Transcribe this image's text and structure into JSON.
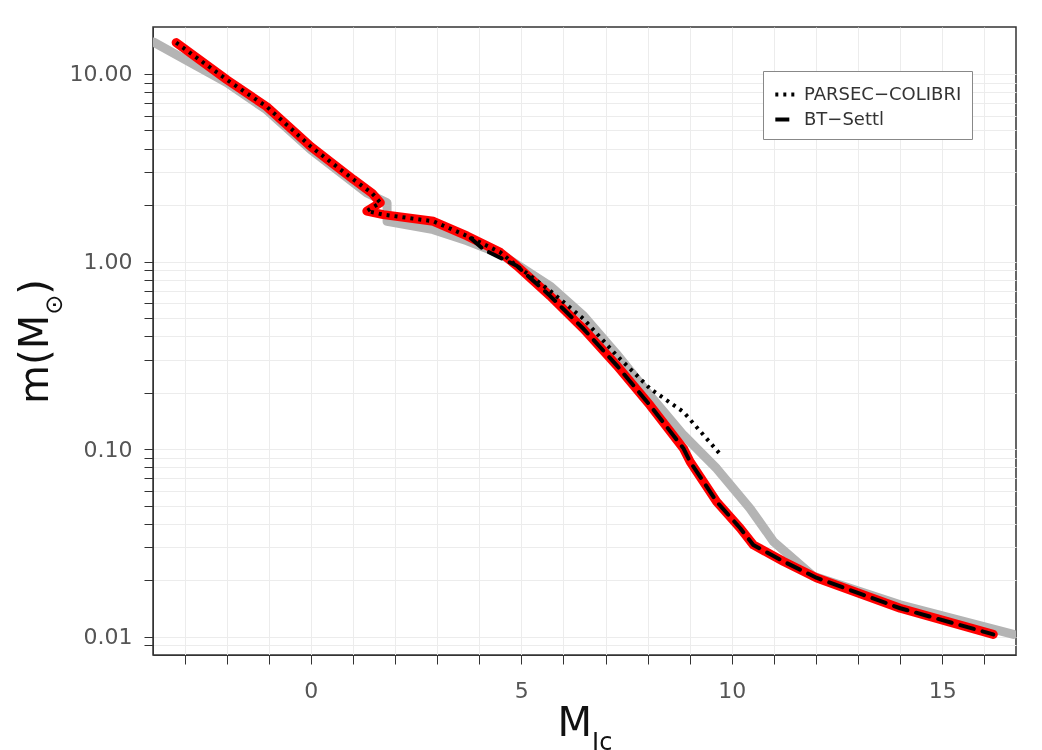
{
  "chart_data": {
    "type": "line",
    "xlabel": "M$_{Ic}$",
    "ylabel": "m(M$_{⊙}$)",
    "log": "y",
    "grid": true,
    "legend": "top right",
    "xlim": [
      -3.75,
      16.75
    ],
    "ylim": [
      0.008,
      17.8
    ],
    "xticks": [
      {
        "value": -3,
        "label": null
      },
      {
        "value": -2,
        "label": null
      },
      {
        "value": -1,
        "label": null
      },
      0,
      {
        "value": 1,
        "label": null
      },
      {
        "value": 2,
        "label": null
      },
      {
        "value": 3,
        "label": null
      },
      {
        "value": 4,
        "label": null
      },
      5,
      {
        "value": 6,
        "label": null
      },
      {
        "value": 7,
        "label": null
      },
      {
        "value": 8,
        "label": null
      },
      {
        "value": 9,
        "label": null
      },
      10,
      {
        "value": 11,
        "label": null
      },
      {
        "value": 12,
        "label": null
      },
      {
        "value": 13,
        "label": null
      },
      {
        "value": 14,
        "label": null
      },
      15,
      {
        "value": 16,
        "label": null
      }
    ],
    "yticks": [
      {
        "value": 0.009,
        "label": null
      },
      {
        "value": 0.01,
        "label": "0.01"
      },
      {
        "value": 0.02,
        "label": null
      },
      {
        "value": 0.03,
        "label": null
      },
      {
        "value": 0.04,
        "label": null
      },
      {
        "value": 0.05,
        "label": null
      },
      {
        "value": 0.06,
        "label": null
      },
      {
        "value": 0.07,
        "label": null
      },
      {
        "value": 0.08,
        "label": null
      },
      {
        "value": 0.09,
        "label": null
      },
      {
        "value": 0.1,
        "label": "0.10"
      },
      {
        "value": 0.2,
        "label": null
      },
      {
        "value": 0.3,
        "label": null
      },
      {
        "value": 0.4,
        "label": null
      },
      {
        "value": 0.5,
        "label": null
      },
      {
        "value": 0.6,
        "label": null
      },
      {
        "value": 0.7,
        "label": null
      },
      {
        "value": 0.8,
        "label": null
      },
      {
        "value": 0.9,
        "label": null
      },
      {
        "value": 1,
        "label": "1.00"
      },
      {
        "value": 2,
        "label": null
      },
      {
        "value": 3,
        "label": null
      },
      {
        "value": 4,
        "label": null
      },
      {
        "value": 5,
        "label": null
      },
      {
        "value": 6,
        "label": null
      },
      {
        "value": 7,
        "label": null
      },
      {
        "value": 8,
        "label": null
      },
      {
        "value": 9,
        "label": null
      },
      {
        "value": 10,
        "label": "10.00"
      }
    ],
    "series": [
      {
        "color": "#b4b4b4",
        "line_style": "solid",
        "x": [
          -3.74,
          -2.0,
          -1.05,
          0,
          1.0,
          1.33,
          1.81,
          1.81,
          2.91,
          3.71,
          4.5,
          5.68,
          6.48,
          7.27,
          8.06,
          8.85,
          9.64,
          10.43,
          10.99,
          11.94,
          14.0,
          16.69
        ],
        "values": [
          14.8,
          9.0,
          6.44,
          3.95,
          2.65,
          2.32,
          2.06,
          1.64,
          1.48,
          1.29,
          1.1,
          0.742,
          0.514,
          0.32,
          0.193,
          0.119,
          0.0789,
          0.0484,
          0.0322,
          0.021,
          0.0148,
          0.0103
        ]
      },
      {
        "color": "#ff0000",
        "line_style": "solid",
        "x": [
          -3.2,
          -1.99,
          -1.05,
          0,
          1.01,
          1.45,
          1.65,
          1.33,
          1.72,
          2.91,
          3.71,
          4.5,
          4.89,
          5.68,
          6.48,
          7.27,
          8.06,
          8.85,
          9.01,
          9.64,
          10.2,
          10.51,
          11.23,
          12.02,
          14.0,
          16.21
        ],
        "values": [
          14.7,
          9.3,
          6.7,
          4.1,
          2.74,
          2.32,
          2.06,
          1.86,
          1.78,
          1.64,
          1.37,
          1.12,
          0.95,
          0.657,
          0.437,
          0.279,
          0.171,
          0.101,
          0.0857,
          0.0525,
          0.0379,
          0.0309,
          0.0252,
          0.0206,
          0.0142,
          0.0103
        ]
      },
      {
        "name": "PARSEC−COLIBRI",
        "color": "#000000",
        "line_style": "dotted",
        "x": [
          -3.2,
          -1.99,
          -1.05,
          0,
          1.01,
          1.45,
          1.65,
          1.33,
          1.72,
          2.91,
          3.71,
          4.5,
          4.89,
          5.68,
          6.48,
          7.27,
          8.06,
          8.85,
          9.76
        ],
        "values": [
          14.7,
          9.3,
          6.7,
          4.1,
          2.74,
          2.32,
          2.06,
          1.86,
          1.78,
          1.64,
          1.37,
          1.12,
          0.95,
          0.7,
          0.494,
          0.315,
          0.21,
          0.158,
          0.092
        ]
      },
      {
        "name": "BT−Settl",
        "color": "#000000",
        "line_style": "dashed",
        "x": [
          3.8,
          4.1,
          4.89,
          5.68,
          6.48,
          7.27,
          8.06,
          8.85,
          9.01,
          9.64,
          10.2,
          10.51,
          11.23,
          12.02,
          14.0,
          16.21
        ],
        "values": [
          1.33,
          1.16,
          0.95,
          0.657,
          0.437,
          0.279,
          0.171,
          0.101,
          0.0857,
          0.0525,
          0.0379,
          0.0309,
          0.0252,
          0.0206,
          0.0142,
          0.0103
        ]
      }
    ]
  }
}
